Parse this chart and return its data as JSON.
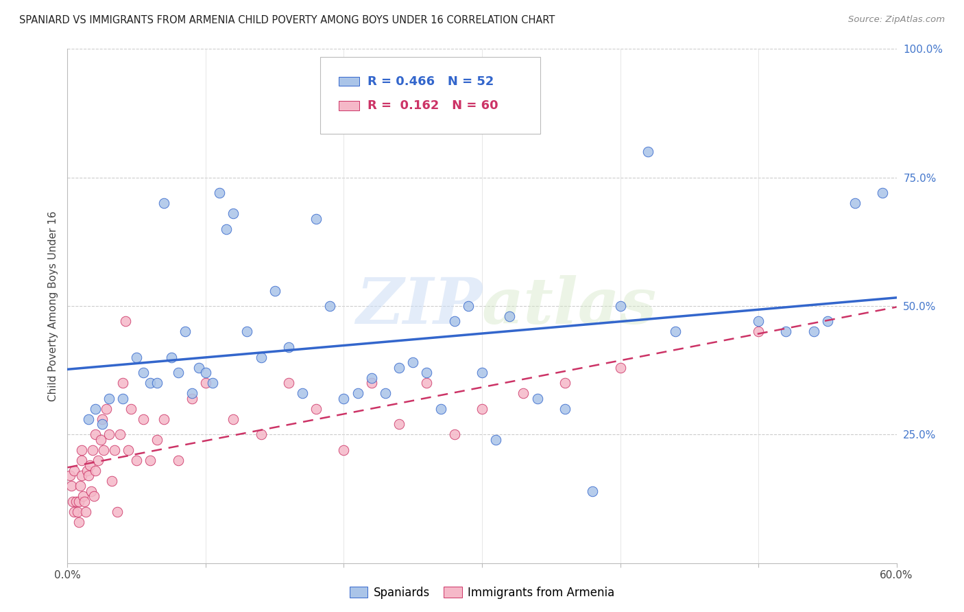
{
  "title": "SPANIARD VS IMMIGRANTS FROM ARMENIA CHILD POVERTY AMONG BOYS UNDER 16 CORRELATION CHART",
  "source": "Source: ZipAtlas.com",
  "ylabel": "Child Poverty Among Boys Under 16",
  "xlim": [
    0.0,
    0.6
  ],
  "ylim": [
    0.0,
    1.0
  ],
  "spaniards_R": 0.466,
  "spaniards_N": 52,
  "armenia_R": 0.162,
  "armenia_N": 60,
  "spaniards_color": "#aac4e8",
  "armenia_color": "#f5b8c8",
  "spaniards_line_color": "#3366cc",
  "armenia_line_color": "#cc3366",
  "legend_label_1": "Spaniards",
  "legend_label_2": "Immigrants from Armenia",
  "spaniards_x": [
    0.015,
    0.02,
    0.025,
    0.03,
    0.04,
    0.05,
    0.055,
    0.06,
    0.065,
    0.07,
    0.075,
    0.08,
    0.085,
    0.09,
    0.095,
    0.1,
    0.105,
    0.11,
    0.115,
    0.12,
    0.13,
    0.14,
    0.15,
    0.16,
    0.17,
    0.18,
    0.19,
    0.2,
    0.21,
    0.22,
    0.23,
    0.24,
    0.25,
    0.26,
    0.27,
    0.28,
    0.29,
    0.3,
    0.31,
    0.32,
    0.34,
    0.36,
    0.38,
    0.4,
    0.42,
    0.44,
    0.5,
    0.52,
    0.54,
    0.55,
    0.57,
    0.59
  ],
  "spaniards_y": [
    0.28,
    0.3,
    0.27,
    0.32,
    0.32,
    0.4,
    0.37,
    0.35,
    0.35,
    0.7,
    0.4,
    0.37,
    0.45,
    0.33,
    0.38,
    0.37,
    0.35,
    0.72,
    0.65,
    0.68,
    0.45,
    0.4,
    0.53,
    0.42,
    0.33,
    0.67,
    0.5,
    0.32,
    0.33,
    0.36,
    0.33,
    0.38,
    0.39,
    0.37,
    0.3,
    0.47,
    0.5,
    0.37,
    0.24,
    0.48,
    0.32,
    0.3,
    0.14,
    0.5,
    0.8,
    0.45,
    0.47,
    0.45,
    0.45,
    0.47,
    0.7,
    0.72
  ],
  "armenia_x": [
    0.002,
    0.003,
    0.004,
    0.005,
    0.005,
    0.006,
    0.007,
    0.008,
    0.008,
    0.009,
    0.01,
    0.01,
    0.01,
    0.011,
    0.012,
    0.013,
    0.014,
    0.015,
    0.016,
    0.017,
    0.018,
    0.019,
    0.02,
    0.02,
    0.022,
    0.024,
    0.025,
    0.026,
    0.028,
    0.03,
    0.032,
    0.034,
    0.036,
    0.038,
    0.04,
    0.042,
    0.044,
    0.046,
    0.05,
    0.055,
    0.06,
    0.065,
    0.07,
    0.08,
    0.09,
    0.1,
    0.12,
    0.14,
    0.16,
    0.18,
    0.2,
    0.22,
    0.24,
    0.26,
    0.28,
    0.3,
    0.33,
    0.36,
    0.4,
    0.5
  ],
  "armenia_y": [
    0.17,
    0.15,
    0.12,
    0.18,
    0.1,
    0.12,
    0.1,
    0.12,
    0.08,
    0.15,
    0.2,
    0.17,
    0.22,
    0.13,
    0.12,
    0.1,
    0.18,
    0.17,
    0.19,
    0.14,
    0.22,
    0.13,
    0.18,
    0.25,
    0.2,
    0.24,
    0.28,
    0.22,
    0.3,
    0.25,
    0.16,
    0.22,
    0.1,
    0.25,
    0.35,
    0.47,
    0.22,
    0.3,
    0.2,
    0.28,
    0.2,
    0.24,
    0.28,
    0.2,
    0.32,
    0.35,
    0.28,
    0.25,
    0.35,
    0.3,
    0.22,
    0.35,
    0.27,
    0.35,
    0.25,
    0.3,
    0.33,
    0.35,
    0.38,
    0.45
  ],
  "watermark_zip": "ZIP",
  "watermark_atlas": "atlas"
}
